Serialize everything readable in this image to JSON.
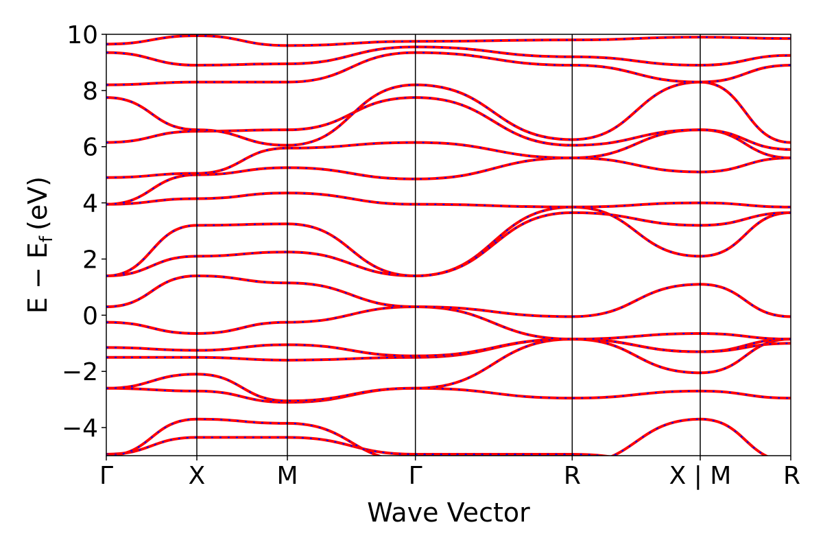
{
  "chart_data": {
    "type": "line",
    "title": "",
    "xlabel": "Wave Vector",
    "ylabel": "E − E",
    "ylabel_subscript": "f",
    "ylabel_unit": "(eV)",
    "ylim": [
      -5,
      10
    ],
    "yticks": [
      -4,
      -2,
      0,
      2,
      4,
      6,
      8,
      10
    ],
    "ytick_labels": [
      "−4",
      "−2",
      "0",
      "2",
      "4",
      "6",
      "8",
      "10"
    ],
    "kpath_labels": [
      "Γ",
      "X",
      "M",
      "Γ",
      "R",
      "X | M",
      "R"
    ],
    "kpath_positions": [
      0,
      0.5,
      1.0,
      1.707,
      2.573,
      3.28,
      3.78
    ],
    "xlim": [
      0,
      3.78
    ],
    "grid": false,
    "legend": "none",
    "colors": {
      "band_primary": "#ff0000",
      "band_overlay": "#0000ff",
      "kpath_lines": "#000000"
    },
    "series": [
      {
        "values": [
          [
            0,
            -4.95
          ],
          [
            0.5,
            -4.35
          ],
          [
            1.0,
            -4.35
          ],
          [
            1.707,
            -4.95
          ],
          [
            2.573,
            -4.95
          ],
          [
            3.28,
            -5.5
          ]
        ]
      },
      {
        "values": [
          [
            0,
            -5.0
          ],
          [
            0.5,
            -3.7
          ],
          [
            1.0,
            -3.85
          ],
          [
            1.707,
            -5.2
          ],
          [
            2.573,
            -5.3
          ],
          [
            3.28,
            -3.7
          ],
          [
            3.78,
            -5.2
          ]
        ]
      },
      {
        "values": [
          [
            0,
            -2.6
          ],
          [
            0.5,
            -2.7
          ],
          [
            1.0,
            -3.1
          ],
          [
            1.707,
            -2.6
          ],
          [
            2.573,
            -2.95
          ],
          [
            3.28,
            -2.7
          ],
          [
            3.78,
            -2.95
          ]
        ]
      },
      {
        "values": [
          [
            0,
            -2.6
          ],
          [
            0.5,
            -2.1
          ],
          [
            1.0,
            -3.05
          ],
          [
            1.707,
            -2.6
          ],
          [
            2.573,
            -0.85
          ],
          [
            3.28,
            -2.05
          ],
          [
            3.78,
            -0.85
          ]
        ]
      },
      {
        "values": [
          [
            0,
            -1.5
          ],
          [
            0.5,
            -1.5
          ],
          [
            1.0,
            -1.6
          ],
          [
            1.707,
            -1.5
          ],
          [
            2.573,
            -0.85
          ],
          [
            3.28,
            -1.3
          ],
          [
            3.78,
            -0.85
          ]
        ]
      },
      {
        "values": [
          [
            0,
            -1.15
          ],
          [
            0.5,
            -1.25
          ],
          [
            1.0,
            -1.05
          ],
          [
            1.707,
            -1.45
          ],
          [
            2.573,
            -0.85
          ],
          [
            3.28,
            -1.3
          ],
          [
            3.78,
            -1.0
          ]
        ]
      },
      {
        "values": [
          [
            0,
            -0.25
          ],
          [
            0.5,
            -0.65
          ],
          [
            1.0,
            -0.25
          ],
          [
            1.707,
            0.3
          ],
          [
            2.573,
            -0.85
          ],
          [
            3.28,
            -0.65
          ],
          [
            3.78,
            -0.85
          ]
        ]
      },
      {
        "values": [
          [
            0,
            0.3
          ],
          [
            0.5,
            1.4
          ],
          [
            1.0,
            1.15
          ],
          [
            1.707,
            0.3
          ],
          [
            2.573,
            -0.05
          ],
          [
            3.28,
            1.1
          ],
          [
            3.78,
            -0.05
          ]
        ]
      },
      {
        "values": [
          [
            0,
            1.4
          ],
          [
            0.5,
            2.1
          ],
          [
            1.0,
            2.25
          ],
          [
            1.707,
            1.4
          ],
          [
            2.573,
            3.85
          ],
          [
            3.28,
            2.1
          ],
          [
            3.78,
            3.65
          ]
        ]
      },
      {
        "values": [
          [
            0,
            1.4
          ],
          [
            0.5,
            3.2
          ],
          [
            1.0,
            3.25
          ],
          [
            1.707,
            1.4
          ],
          [
            2.573,
            3.65
          ],
          [
            3.28,
            3.2
          ],
          [
            3.78,
            3.65
          ]
        ]
      },
      {
        "values": [
          [
            0,
            3.95
          ],
          [
            0.5,
            4.15
          ],
          [
            1.0,
            4.35
          ],
          [
            1.707,
            3.95
          ],
          [
            2.573,
            3.85
          ],
          [
            3.28,
            4.0
          ],
          [
            3.78,
            3.85
          ]
        ]
      },
      {
        "values": [
          [
            0,
            3.95
          ],
          [
            0.5,
            5.0
          ],
          [
            1.0,
            5.25
          ],
          [
            1.707,
            4.85
          ],
          [
            2.573,
            5.6
          ],
          [
            3.28,
            5.1
          ],
          [
            3.78,
            5.6
          ]
        ]
      },
      {
        "values": [
          [
            0,
            4.9
          ],
          [
            0.5,
            5.05
          ],
          [
            1.0,
            5.95
          ],
          [
            1.707,
            6.15
          ],
          [
            2.573,
            5.6
          ],
          [
            3.28,
            6.6
          ],
          [
            3.78,
            5.6
          ]
        ]
      },
      {
        "values": [
          [
            0,
            6.15
          ],
          [
            0.5,
            6.55
          ],
          [
            1.0,
            6.6
          ],
          [
            1.707,
            7.75
          ],
          [
            2.573,
            6.05
          ],
          [
            3.28,
            6.6
          ],
          [
            3.78,
            5.9
          ]
        ]
      },
      {
        "values": [
          [
            0,
            7.75
          ],
          [
            0.5,
            6.6
          ],
          [
            1.0,
            6.05
          ],
          [
            1.707,
            8.2
          ],
          [
            2.573,
            6.25
          ],
          [
            3.28,
            8.3
          ],
          [
            3.78,
            6.15
          ]
        ]
      },
      {
        "values": [
          [
            0,
            8.2
          ],
          [
            0.5,
            8.3
          ],
          [
            1.0,
            8.3
          ],
          [
            1.707,
            9.35
          ],
          [
            2.573,
            8.9
          ],
          [
            3.28,
            8.3
          ],
          [
            3.78,
            8.9
          ]
        ]
      },
      {
        "values": [
          [
            0,
            9.35
          ],
          [
            0.5,
            8.9
          ],
          [
            1.0,
            8.95
          ],
          [
            1.707,
            9.55
          ],
          [
            2.573,
            9.2
          ],
          [
            3.28,
            8.9
          ],
          [
            3.78,
            9.25
          ]
        ]
      },
      {
        "values": [
          [
            0,
            9.65
          ],
          [
            0.5,
            9.95
          ],
          [
            1.0,
            9.6
          ],
          [
            1.707,
            9.75
          ],
          [
            2.573,
            9.8
          ],
          [
            3.28,
            9.9
          ],
          [
            3.78,
            9.85
          ]
        ]
      }
    ]
  }
}
